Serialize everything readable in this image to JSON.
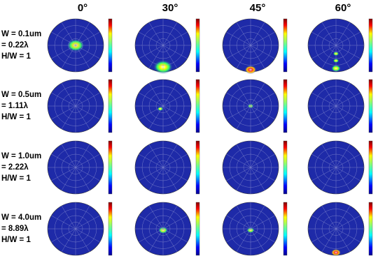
{
  "columns": [
    "0°",
    "30°",
    "45°",
    "60°"
  ],
  "rows": [
    {
      "lines": [
        "W = 0.1um",
        "= 0.22λ",
        "H/W = 1"
      ]
    },
    {
      "lines": [
        "W = 0.5um",
        "= 1.11λ",
        "H/W = 1"
      ]
    },
    {
      "lines": [
        "W = 1.0um",
        "= 2.22λ",
        "H/W = 1"
      ]
    },
    {
      "lines": [
        "W = 4.0um",
        "= 8.89λ",
        "H/W = 1"
      ]
    }
  ]
}
